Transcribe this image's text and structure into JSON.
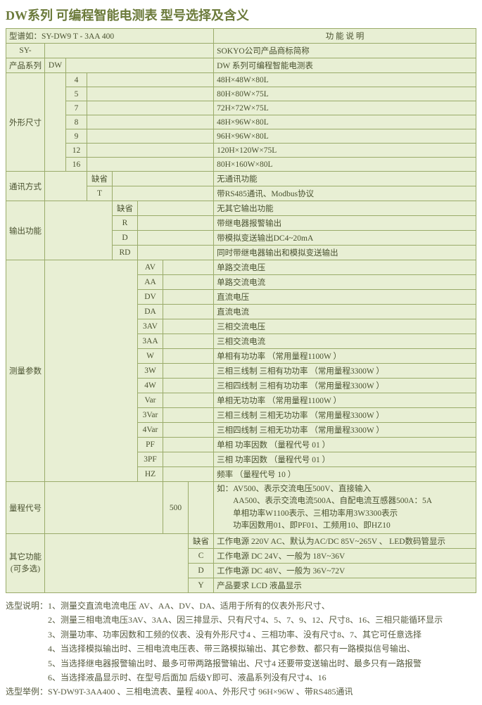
{
  "page_title": "DW系列 可编程智能电测表 型号选择及含义",
  "header_left": "型谱如：SY-DW9 T -   3AA  400",
  "header_right": "功  能  说  明",
  "rows": {
    "sy_label": "SY-",
    "sy_desc": "SOKYO公司产品商标简称",
    "series_label": "产品系列",
    "series_code": "DW",
    "series_desc": "DW 系列可编程智能电测表",
    "dim_label": "外形尺寸",
    "dims": [
      {
        "code": "4",
        "desc": "48H×48W×80L"
      },
      {
        "code": "5",
        "desc": "80H×80W×75L"
      },
      {
        "code": "7",
        "desc": "72H×72W×75L"
      },
      {
        "code": "8",
        "desc": "48H×96W×80L"
      },
      {
        "code": "9",
        "desc": "96H×96W×80L"
      },
      {
        "code": "12",
        "desc": "120H×120W×75L"
      },
      {
        "code": "16",
        "desc": "80H×160W×80L"
      }
    ],
    "comm_label": "通讯方式",
    "comm": [
      {
        "code": "缺省",
        "desc": "无通讯功能"
      },
      {
        "code": "T",
        "desc": "带RS485通讯、Modbus协议"
      }
    ],
    "out_label": "输出功能",
    "out": [
      {
        "code": "缺省",
        "desc": "无其它输出功能"
      },
      {
        "code": "R",
        "desc": "带继电器报警输出"
      },
      {
        "code": "D",
        "desc": "带模拟变送输出DC4~20mA"
      },
      {
        "code": "RD",
        "desc": "同时带继电器输出和模拟变送输出"
      }
    ],
    "meas_label": "测量参数",
    "meas": [
      {
        "code": "AV",
        "desc": "单路交流电压"
      },
      {
        "code": "AA",
        "desc": "单路交流电流"
      },
      {
        "code": "DV",
        "desc": "直流电压"
      },
      {
        "code": "DA",
        "desc": "直流电流"
      },
      {
        "code": "3AV",
        "desc": "三相交流电压"
      },
      {
        "code": "3AA",
        "desc": "三相交流电流"
      },
      {
        "code": "W",
        "desc": "单相有功功率                       （常用量程1100W ）"
      },
      {
        "code": "3W",
        "desc": "三相三线制  三相有功功率  （常用量程3300W ）"
      },
      {
        "code": "4W",
        "desc": "三相四线制  三相有功功率  （常用量程3300W ）"
      },
      {
        "code": "Var",
        "desc": "单相无功功率                       （常用量程1100W ）"
      },
      {
        "code": "3Var",
        "desc": "三相三线制  三相无功功率  （常用量程3300W ）"
      },
      {
        "code": "4Var",
        "desc": "三相四线制  三相无功功率  （常用量程3300W ）"
      },
      {
        "code": "PF",
        "desc": "单相  功率因数                     （量程代号 01 ）"
      },
      {
        "code": "3PF",
        "desc": "三相   功率因数                    （量程代号 01 ）"
      },
      {
        "code": "HZ",
        "desc": "频率                                      （量程代号 10 ）"
      }
    ],
    "range_label": "量程代号",
    "range_code": "500",
    "range_desc": "如：AV500、表示交流电压500V、直接输入\n　　AA500、表示交流电流500A、自配电流互感器500A：5A\n　　单相功率W1100表示、三相功率用3W3300表示\n　　功率因数用01、即PF01、工频用10、即HZ10",
    "other_label": "其它功能\n(可多选)",
    "other": [
      {
        "code": "缺省",
        "desc": "工作电源 220V AC、默认为AC/DC 85V~265V 、 LED数码管显示"
      },
      {
        "code": "C",
        "desc": "工作电源  DC 24V、一般为  18V~36V"
      },
      {
        "code": "D",
        "desc": "工作电源  DC 48V、一般为  36V~72V"
      },
      {
        "code": "Y",
        "desc": "产品要求  LCD 液晶显示"
      }
    ]
  },
  "notes": {
    "sel_label": "选型说明：",
    "sel_items": [
      "1、测量交直流电流电压 AV、AA、DV、DA、适用于所有的仪表外形尺寸、",
      "2、测量三相电流电压3AV、3AA、因三排显示、只有尺寸4、5、7、9、12、尺寸8、16、三相只能循环显示",
      "3、测量功率、功率因数和工频的仪表、没有外形尺寸4 、三相功率、没有尺寸8、7、其它可任意选择",
      "4、当选择模拟输出时、三相电流电压表、带三路模拟输出、其它参数、都只有一路模拟信号输出、",
      "5、当选择继电器报警输出时、最多可带两路报警输出、尺寸4 还要带变送输出时、最多只有一路报警",
      "6、当选择液晶显示时、在型号后面加  后级Y即可、液晶系列没有尺寸4、16"
    ],
    "ex_label": "选型举例：",
    "ex_text": "SY-DW9T-3AA400 、三相电流表、量程 400A、外形尺寸 96H×96W 、带RS485通讯"
  },
  "colors": {
    "cell_bg": "#e8efd4",
    "border": "#9aab6a",
    "title": "#6b7a3a",
    "text": "#4a5230"
  }
}
